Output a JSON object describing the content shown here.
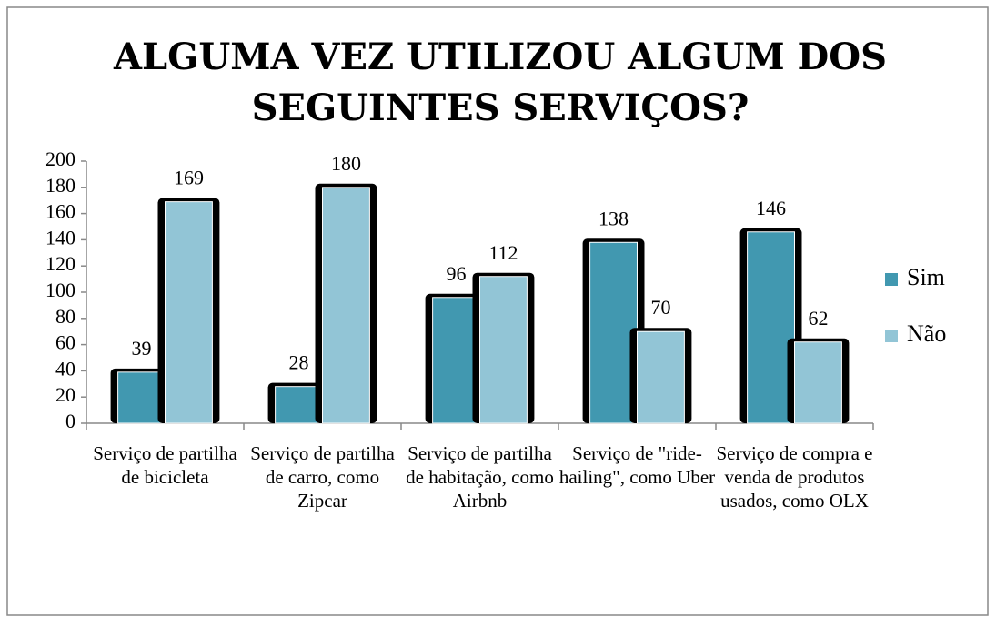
{
  "chart_data": {
    "type": "bar",
    "title": "ALGUMA VEZ UTILIZOU ALGUM DOS SEGUINTES SERVIÇOS?",
    "categories": [
      "Serviço de partilha de bicicleta",
      "Serviço de partilha de carro, como Zipcar",
      "Serviço de partilha de habitação, como Airbnb",
      "Serviço de \"ride-hailing\", como Uber",
      "Serviço de compra e venda de produtos usados, como OLX"
    ],
    "series": [
      {
        "name": "Sim",
        "color": "#4198b0",
        "values": [
          39,
          28,
          96,
          138,
          146
        ]
      },
      {
        "name": "Não",
        "color": "#92c5d6",
        "values": [
          169,
          180,
          112,
          70,
          62
        ]
      }
    ],
    "ylim": [
      0,
      200
    ],
    "yticks": [
      0,
      20,
      40,
      60,
      80,
      100,
      120,
      140,
      160,
      180,
      200
    ],
    "legend": "right"
  }
}
